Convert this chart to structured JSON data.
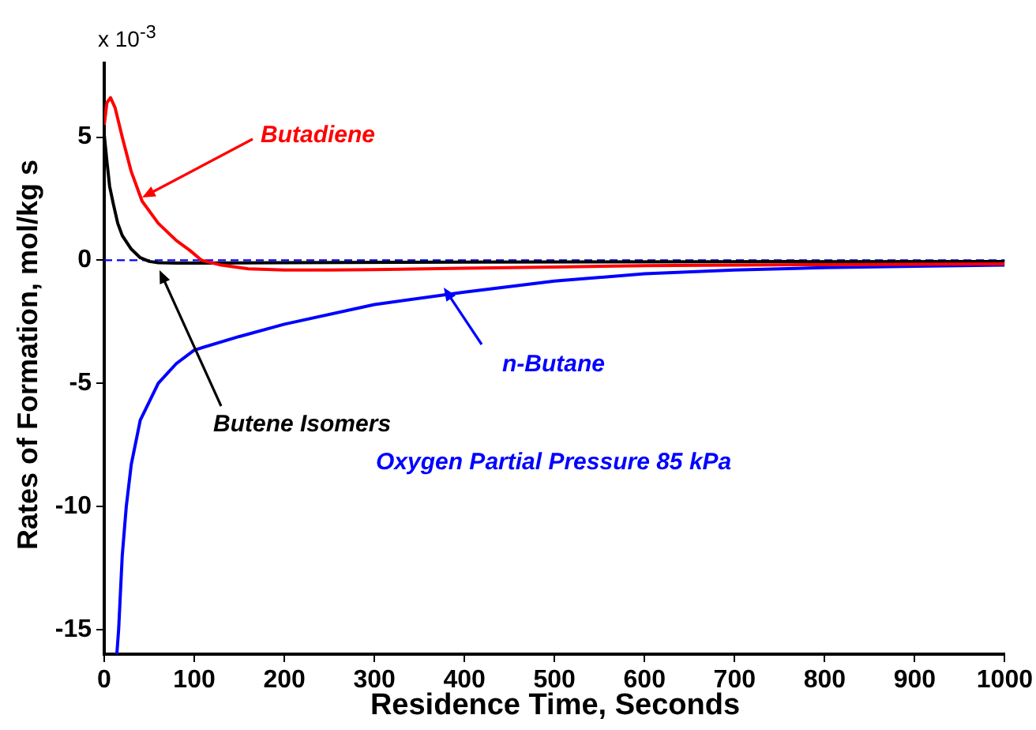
{
  "chart_data": {
    "type": "line",
    "xlabel": "Residence Time, Seconds",
    "ylabel": "Rates of Formation, mol/kg s",
    "xlim": [
      0,
      1000
    ],
    "xticks": [
      0,
      100,
      200,
      300,
      400,
      500,
      600,
      700,
      800,
      900,
      1000
    ],
    "ylim": [
      -16,
      8
    ],
    "yticks": [
      -15,
      -10,
      -5,
      0,
      5
    ],
    "grid": false,
    "legend": false,
    "marker": "none",
    "annotations": [
      "x 10$^{-3}$",
      "Oxygen Partial Pressure 85 kPa"
    ],
    "ref_lines": [
      {
        "axis": "y",
        "value": 0,
        "color": "#0000ff",
        "line_style": "dashed"
      }
    ],
    "series": [
      {
        "name": "Butadiene",
        "color": "#ff0000",
        "x": [
          0,
          3,
          7,
          12,
          20,
          30,
          42,
          60,
          80,
          95,
          108,
          130,
          160,
          200,
          250,
          300,
          400,
          500,
          600,
          800,
          1000
        ],
        "values": [
          5.5,
          6.4,
          6.6,
          6.2,
          5.0,
          3.6,
          2.4,
          1.5,
          0.8,
          0.4,
          0.0,
          -0.2,
          -0.35,
          -0.4,
          -0.4,
          -0.38,
          -0.33,
          -0.28,
          -0.22,
          -0.18,
          -0.15
        ]
      },
      {
        "name": "Butene Isomers",
        "color": "#000000",
        "x": [
          0,
          3,
          6,
          10,
          15,
          20,
          30,
          40,
          50,
          60,
          80,
          100,
          200,
          400,
          700,
          1000
        ],
        "values": [
          5.1,
          4.0,
          3.0,
          2.3,
          1.5,
          1.0,
          0.45,
          0.1,
          -0.05,
          -0.1,
          -0.12,
          -0.12,
          -0.1,
          -0.08,
          -0.06,
          -0.05
        ]
      },
      {
        "name": "n-Butane",
        "color": "#0000ff",
        "x": [
          14,
          16,
          20,
          24.5,
          30,
          40,
          60,
          80,
          100,
          150,
          200,
          300,
          400,
          500,
          600,
          700,
          800,
          900,
          1000
        ],
        "values": [
          -16,
          -15,
          -12,
          -10,
          -8.3,
          -6.5,
          -5,
          -4.2,
          -3.65,
          -3.1,
          -2.6,
          -1.8,
          -1.3,
          -0.85,
          -0.55,
          -0.4,
          -0.3,
          -0.25,
          -0.2
        ]
      }
    ]
  }
}
